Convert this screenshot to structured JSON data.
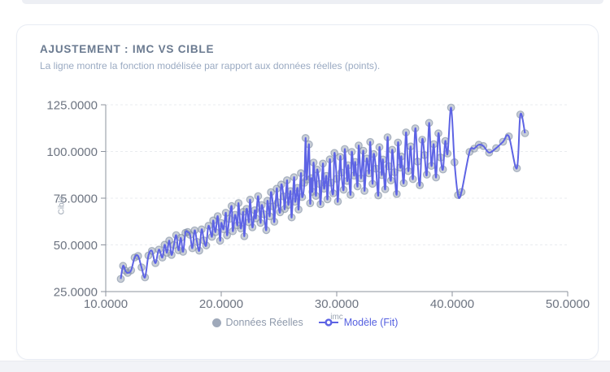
{
  "card": {
    "title": "AJUSTEMENT : IMC VS CIBLE",
    "subtitle": "La ligne montre la fonction modélisée par rapport aux données réelles (points).",
    "title_color": "#6a7a90",
    "subtitle_color": "#9aaac2",
    "background": "#ffffff",
    "border_color": "#e8ecf4"
  },
  "chart_data": {
    "type": "scatter",
    "title": "AJUSTEMENT : IMC VS CIBLE",
    "xlabel": "imc",
    "ylabel": "Cible",
    "xlim": [
      10,
      50
    ],
    "ylim": [
      25,
      125
    ],
    "x_ticks": [
      "10.0000",
      "20.0000",
      "30.0000",
      "40.0000",
      "50.0000"
    ],
    "y_ticks": [
      "25.0000",
      "50.0000",
      "75.0000",
      "100.0000",
      "125.0000"
    ],
    "grid": "horizontal-dashed",
    "legend_position": "bottom-center",
    "colors": {
      "point_fill": "rgba(145,158,176,0.5)",
      "point_stroke": "rgba(128,141,161,0.6)",
      "line": "#5d63e4",
      "axis": "#8d939e",
      "tick_text": "#6d7481",
      "grid_line": "#e9ebef"
    },
    "series": [
      {
        "name": "Données Réelles",
        "type": "scatter",
        "label_color": "#8e99ab"
      },
      {
        "name": "Modèle (Fit)",
        "type": "line",
        "label_color": "#5560e0"
      }
    ],
    "points": [
      [
        11.3,
        31.8
      ],
      [
        11.5,
        38.8
      ],
      [
        11.7,
        36.2
      ],
      [
        11.9,
        35.0
      ],
      [
        12.2,
        36.4
      ],
      [
        12.5,
        43.2
      ],
      [
        12.8,
        44.1
      ],
      [
        13.1,
        38.0
      ],
      [
        13.4,
        32.6
      ],
      [
        13.7,
        44.3
      ],
      [
        14.0,
        46.8
      ],
      [
        14.3,
        40.2
      ],
      [
        14.6,
        47.5
      ],
      [
        14.9,
        43.2
      ],
      [
        15.1,
        50.1
      ],
      [
        15.3,
        45.8
      ],
      [
        15.5,
        52.3
      ],
      [
        15.7,
        44.6
      ],
      [
        15.9,
        49.9
      ],
      [
        16.1,
        55.2
      ],
      [
        16.3,
        47.1
      ],
      [
        16.5,
        53.8
      ],
      [
        16.7,
        46.3
      ],
      [
        16.9,
        56.5
      ],
      [
        17.1,
        56.9
      ],
      [
        17.3,
        55.4
      ],
      [
        17.5,
        48.2
      ],
      [
        17.7,
        57.8
      ],
      [
        17.9,
        51.6
      ],
      [
        18.1,
        46.9
      ],
      [
        18.3,
        58.3
      ],
      [
        18.5,
        52.4
      ],
      [
        18.7,
        49.7
      ],
      [
        18.9,
        60.2
      ],
      [
        19.2,
        54.3
      ],
      [
        19.3,
        63.1
      ],
      [
        19.5,
        56.8
      ],
      [
        19.7,
        65.4
      ],
      [
        19.9,
        52.2
      ],
      [
        20.0,
        61.7
      ],
      [
        20.2,
        58.4
      ],
      [
        20.4,
        67.2
      ],
      [
        20.5,
        55.1
      ],
      [
        20.7,
        63.9
      ],
      [
        20.9,
        70.8
      ],
      [
        21.0,
        57.3
      ],
      [
        21.2,
        66.1
      ],
      [
        21.4,
        60.5
      ],
      [
        21.5,
        72.4
      ],
      [
        21.7,
        58.8
      ],
      [
        21.9,
        67.7
      ],
      [
        22.0,
        54.6
      ],
      [
        22.2,
        69.3
      ],
      [
        22.4,
        62.1
      ],
      [
        22.5,
        74.2
      ],
      [
        22.7,
        59.4
      ],
      [
        22.9,
        68.5
      ],
      [
        23.0,
        64.2
      ],
      [
        23.2,
        76.1
      ],
      [
        23.4,
        61.8
      ],
      [
        23.5,
        71.3
      ],
      [
        23.7,
        66.4
      ],
      [
        23.9,
        57.9
      ],
      [
        24.0,
        73.6
      ],
      [
        24.2,
        65.3
      ],
      [
        24.3,
        78.2
      ],
      [
        24.5,
        70.6
      ],
      [
        24.6,
        62.4
      ],
      [
        24.8,
        80.1
      ],
      [
        24.9,
        72.8
      ],
      [
        25.1,
        67.5
      ],
      [
        25.2,
        82.3
      ],
      [
        25.4,
        75.9
      ],
      [
        25.5,
        69.2
      ],
      [
        25.7,
        84.6
      ],
      [
        25.8,
        71.4
      ],
      [
        26.0,
        78.8
      ],
      [
        26.1,
        64.7
      ],
      [
        26.3,
        86.2
      ],
      [
        26.4,
        73.1
      ],
      [
        26.6,
        80.5
      ],
      [
        26.7,
        68.9
      ],
      [
        26.9,
        88.4
      ],
      [
        27.0,
        75.6
      ],
      [
        27.2,
        83.2
      ],
      [
        27.3,
        107.2
      ],
      [
        27.4,
        85.0
      ],
      [
        27.6,
        103.8
      ],
      [
        27.7,
        72.3
      ],
      [
        27.8,
        85.7
      ],
      [
        27.9,
        78.4
      ],
      [
        28.0,
        94.1
      ],
      [
        28.2,
        76.2
      ],
      [
        28.3,
        90.3
      ],
      [
        28.5,
        82.6
      ],
      [
        28.6,
        71.8
      ],
      [
        28.8,
        93.5
      ],
      [
        28.9,
        80.1
      ],
      [
        29.1,
        86.9
      ],
      [
        29.2,
        74.4
      ],
      [
        29.4,
        95.8
      ],
      [
        29.5,
        83.3
      ],
      [
        29.7,
        77.6
      ],
      [
        29.8,
        99.2
      ],
      [
        30.0,
        85.4
      ],
      [
        30.1,
        73.2
      ],
      [
        30.3,
        97.1
      ],
      [
        30.4,
        88.7
      ],
      [
        30.6,
        79.5
      ],
      [
        30.7,
        101.3
      ],
      [
        30.9,
        84.2
      ],
      [
        31.0,
        92.6
      ],
      [
        31.2,
        76.8
      ],
      [
        31.3,
        99.8
      ],
      [
        31.5,
        87.1
      ],
      [
        31.6,
        94.4
      ],
      [
        31.8,
        81.3
      ],
      [
        31.9,
        103.2
      ],
      [
        32.1,
        85.6
      ],
      [
        32.3,
        100.4
      ],
      [
        32.4,
        78.9
      ],
      [
        32.6,
        96.2
      ],
      [
        32.8,
        88.3
      ],
      [
        32.9,
        105.1
      ],
      [
        33.1,
        82.7
      ],
      [
        33.2,
        98.6
      ],
      [
        33.4,
        90.8
      ],
      [
        33.6,
        76.5
      ],
      [
        33.7,
        102.3
      ],
      [
        33.9,
        87.4
      ],
      [
        34.0,
        95.7
      ],
      [
        34.2,
        79.8
      ],
      [
        34.4,
        107.6
      ],
      [
        34.5,
        92.1
      ],
      [
        34.7,
        84.5
      ],
      [
        34.8,
        100.9
      ],
      [
        35.0,
        88.9
      ],
      [
        35.2,
        77.2
      ],
      [
        35.3,
        104.8
      ],
      [
        35.5,
        91.4
      ],
      [
        35.6,
        97.3
      ],
      [
        35.8,
        83.1
      ],
      [
        36.0,
        110.2
      ],
      [
        36.2,
        89.5
      ],
      [
        36.4,
        102.7
      ],
      [
        36.6,
        85.2
      ],
      [
        36.8,
        112.4
      ],
      [
        37.0,
        94.6
      ],
      [
        37.2,
        81.9
      ],
      [
        37.4,
        106.3
      ],
      [
        37.6,
        98.1
      ],
      [
        37.8,
        87.6
      ],
      [
        38.0,
        115.3
      ],
      [
        38.2,
        92.3
      ],
      [
        38.4,
        103.9
      ],
      [
        38.6,
        86.1
      ],
      [
        38.8,
        109.7
      ],
      [
        39.0,
        96.8
      ],
      [
        39.2,
        90.4
      ],
      [
        39.4,
        105.6
      ],
      [
        39.6,
        98.9
      ],
      [
        39.9,
        123.5
      ],
      [
        40.2,
        94.2
      ],
      [
        40.5,
        76.7
      ],
      [
        40.8,
        78.3
      ],
      [
        41.5,
        99.8
      ],
      [
        41.9,
        101.5
      ],
      [
        42.3,
        103.6
      ],
      [
        42.7,
        102.9
      ],
      [
        43.2,
        99.4
      ],
      [
        43.8,
        101.8
      ],
      [
        44.4,
        105.2
      ],
      [
        44.9,
        108.1
      ],
      [
        45.6,
        91.0
      ],
      [
        45.9,
        119.8
      ],
      [
        46.3,
        109.8
      ]
    ]
  }
}
